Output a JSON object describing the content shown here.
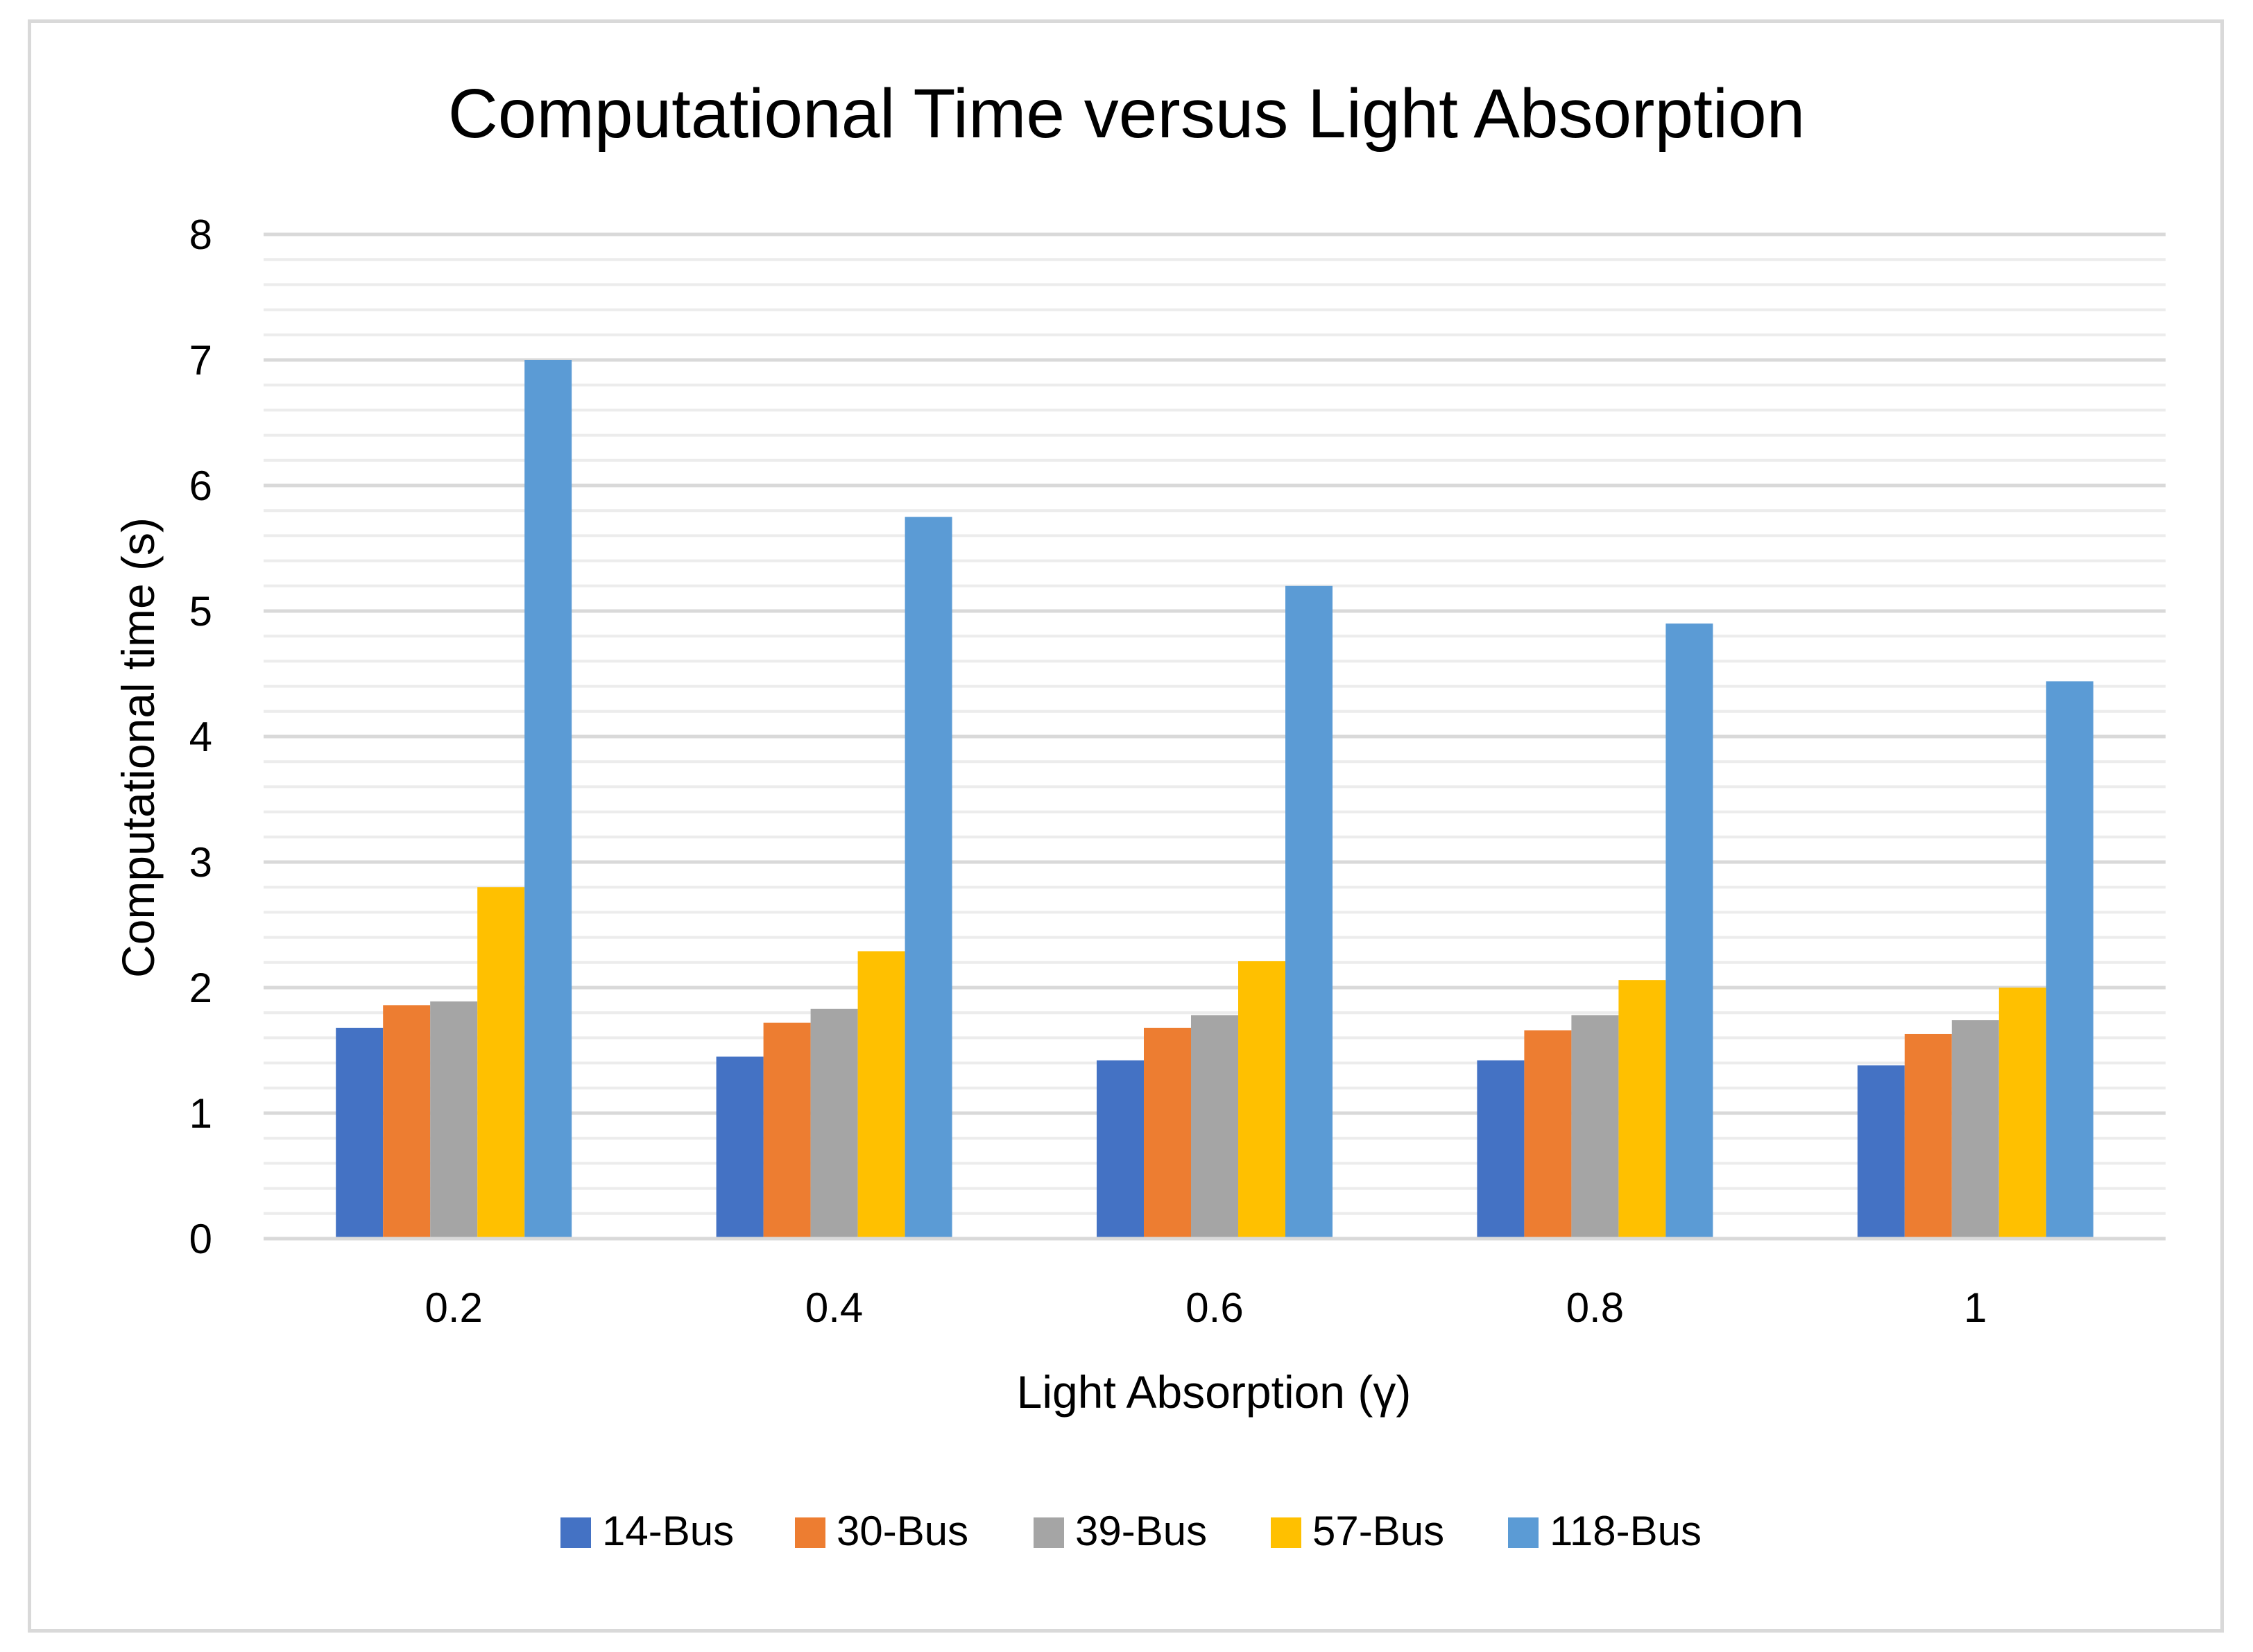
{
  "chart_data": {
    "type": "bar",
    "title": "Computational Time versus Light Absorption",
    "xlabel": "Light Absorption (γ)",
    "ylabel": "Computational time (s)",
    "categories": [
      "0.2",
      "0.4",
      "0.6",
      "0.8",
      "1"
    ],
    "yticks": [
      "0",
      "1",
      "2",
      "3",
      "4",
      "5",
      "6",
      "7",
      "8"
    ],
    "ylim": [
      0,
      8
    ],
    "grid": true,
    "legend_position": "bottom",
    "series": [
      {
        "name": "14-Bus",
        "color": "#4472C4",
        "values": [
          1.68,
          1.45,
          1.42,
          1.42,
          1.38
        ]
      },
      {
        "name": "30-Bus",
        "color": "#ED7D31",
        "values": [
          1.86,
          1.72,
          1.68,
          1.66,
          1.63
        ]
      },
      {
        "name": "39-Bus",
        "color": "#A5A5A5",
        "values": [
          1.89,
          1.83,
          1.78,
          1.78,
          1.74
        ]
      },
      {
        "name": "57-Bus",
        "color": "#FFC000",
        "values": [
          2.8,
          2.29,
          2.21,
          2.06,
          2.0
        ]
      },
      {
        "name": "118-Bus",
        "color": "#5B9BD5",
        "values": [
          7.0,
          5.75,
          5.2,
          4.9,
          4.44
        ]
      }
    ]
  }
}
